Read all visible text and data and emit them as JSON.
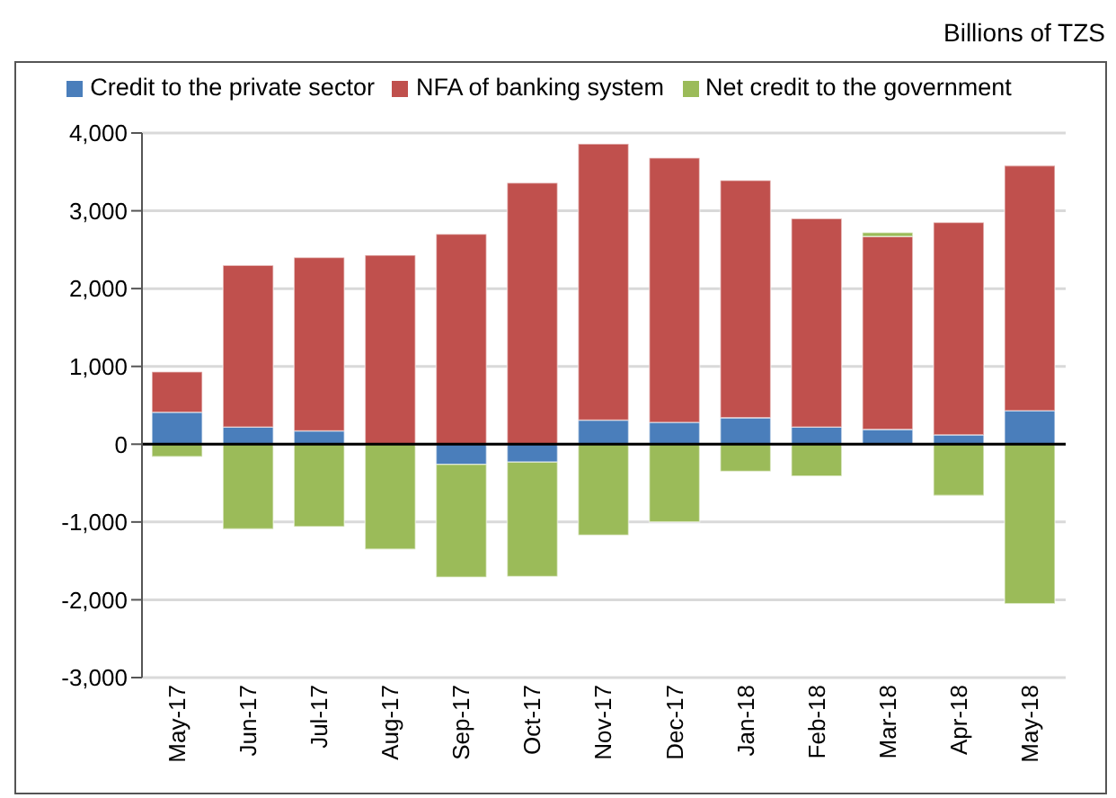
{
  "chart_data": {
    "type": "bar",
    "stacked": true,
    "annotations": [
      "Billions of TZS"
    ],
    "categories": [
      "May-17",
      "Jun-17",
      "Jul-17",
      "Aug-17",
      "Sep-17",
      "Oct-17",
      "Nov-17",
      "Dec-17",
      "Jan-18",
      "Feb-18",
      "Mar-18",
      "Apr-18",
      "May-18"
    ],
    "series": [
      {
        "name": "Credit to the private sector",
        "color": "#4a7ebb",
        "values": [
          410,
          220,
          170,
          0,
          -260,
          -230,
          310,
          280,
          340,
          220,
          190,
          120,
          430
        ]
      },
      {
        "name": "NFA of banking system",
        "color": "#c0504d",
        "values": [
          520,
          2080,
          2230,
          2430,
          2700,
          3360,
          3550,
          3400,
          3050,
          2680,
          2480,
          2730,
          3150
        ]
      },
      {
        "name": "Net credit to the government",
        "color": "#9bbb59",
        "values": [
          -160,
          -1090,
          -1060,
          -1350,
          -1450,
          -1470,
          -1170,
          -1000,
          -350,
          -410,
          50,
          -660,
          -2050
        ]
      }
    ],
    "ylim": [
      -3000,
      4000
    ],
    "yticks": [
      {
        "value": -3000,
        "label": "-3,000"
      },
      {
        "value": -2000,
        "label": "-2,000"
      },
      {
        "value": -1000,
        "label": "-1,000"
      },
      0,
      {
        "value": 1000,
        "label": "1,000"
      },
      {
        "value": 2000,
        "label": "2,000"
      },
      {
        "value": 3000,
        "label": "3,000"
      },
      {
        "value": 4000,
        "label": "4,000"
      }
    ],
    "grid": "y",
    "legend": "top"
  }
}
